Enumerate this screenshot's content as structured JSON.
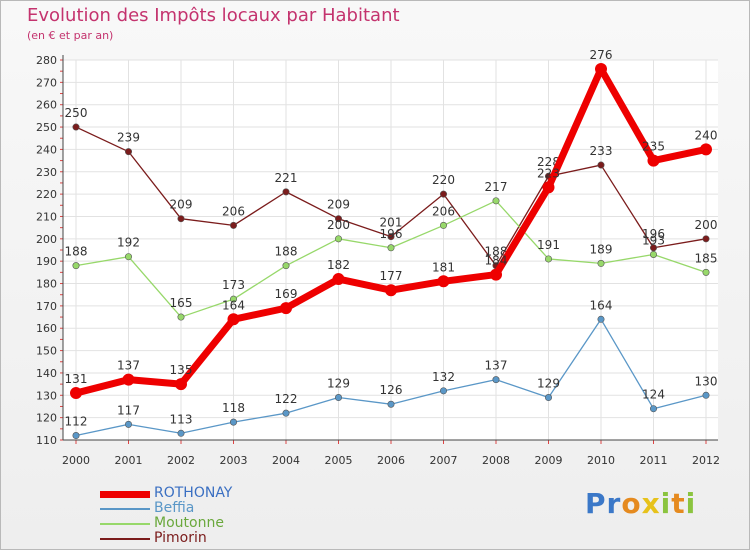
{
  "chart_data": {
    "type": "line",
    "title": "Evolution des Impôts locaux par Habitant",
    "subtitle": "(en € et par an)",
    "xlabel": "",
    "ylabel": "",
    "x": [
      "2000",
      "2001",
      "2002",
      "2003",
      "2004",
      "2005",
      "2006",
      "2007",
      "2008",
      "2009",
      "2010",
      "2011",
      "2012"
    ],
    "ylim": [
      110,
      280
    ],
    "yticks": [
      110,
      120,
      130,
      140,
      150,
      160,
      170,
      180,
      190,
      200,
      210,
      220,
      230,
      240,
      250,
      260,
      270,
      280
    ],
    "grid": true,
    "legend_position": "bottom-left",
    "series": [
      {
        "name": "Pimorin",
        "color": "#7b1c1c",
        "values": [
          250,
          239,
          209,
          206,
          221,
          209,
          201,
          220,
          188,
          228,
          233,
          196,
          200
        ]
      },
      {
        "name": "Moutonne",
        "color": "#97d86a",
        "values": [
          188,
          192,
          165,
          173,
          188,
          200,
          196,
          206,
          217,
          191,
          189,
          193,
          185
        ]
      },
      {
        "name": "Beffia",
        "color": "#5a97c7",
        "values": [
          112,
          117,
          113,
          118,
          122,
          129,
          126,
          132,
          137,
          129,
          164,
          124,
          130
        ]
      },
      {
        "name": "ROTHONAY",
        "color": "#ee0000",
        "values": [
          131,
          137,
          135,
          164,
          169,
          182,
          177,
          181,
          184,
          223,
          276,
          235,
          240
        ]
      }
    ],
    "legend_order": [
      "ROTHONAY",
      "Beffia",
      "Moutonne",
      "Pimorin"
    ]
  },
  "logo": {
    "letters": [
      "P",
      "r",
      "o",
      "x",
      "i",
      "t",
      "i"
    ],
    "colors": [
      "#3b78c8",
      "#3b78c8",
      "#e58a1f",
      "#e7c21b",
      "#8bc43f",
      "#e58a1f",
      "#8bc43f"
    ]
  }
}
